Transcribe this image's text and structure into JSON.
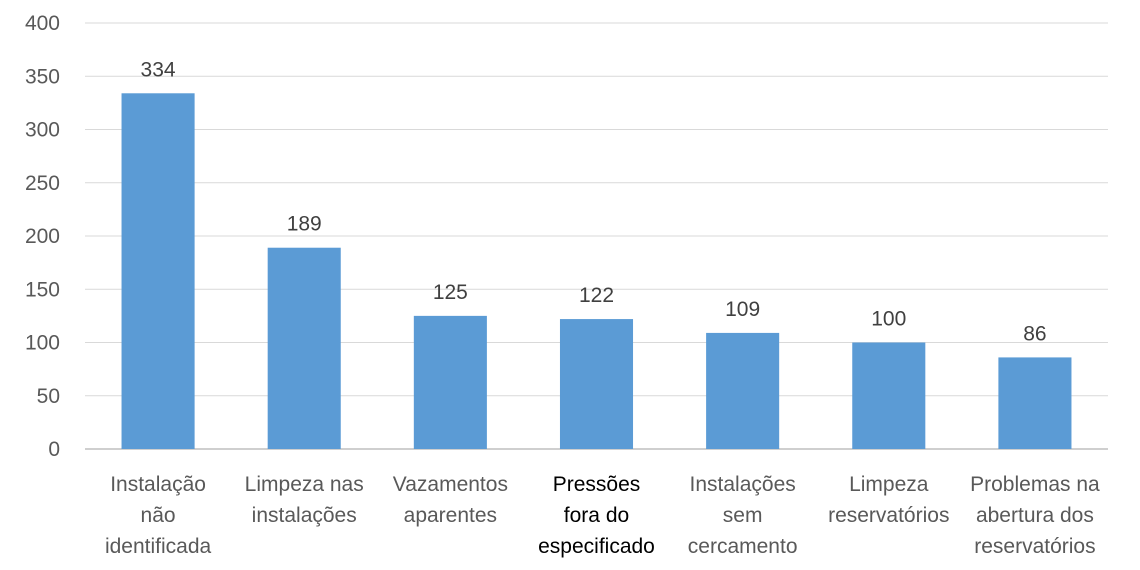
{
  "chart_data": {
    "type": "bar",
    "title": "",
    "xlabel": "",
    "ylabel": "",
    "ylim": [
      0,
      400
    ],
    "yticks": [
      0,
      50,
      100,
      150,
      200,
      250,
      300,
      350,
      400
    ],
    "grid": true,
    "legend": "none",
    "bar_color": "#5b9bd5",
    "categories": [
      [
        "Instalação",
        "não",
        "identificada"
      ],
      [
        "Limpeza nas",
        "instalações"
      ],
      [
        "Vazamentos",
        "aparentes"
      ],
      [
        "Pressões",
        "fora do",
        "especificado"
      ],
      [
        "Instalações",
        "sem",
        "cercamento"
      ],
      [
        "Limpeza",
        "reservatórios"
      ],
      [
        "Problemas na",
        "abertura dos",
        "reservatórios"
      ]
    ],
    "values": [
      334,
      189,
      125,
      122,
      109,
      100,
      86
    ]
  }
}
